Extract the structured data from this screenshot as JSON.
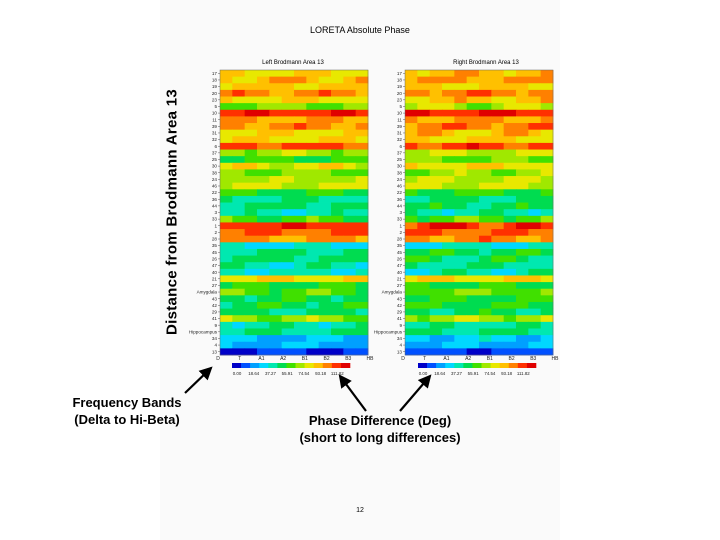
{
  "slide": {
    "title": "LORETA Absolute Phase",
    "page_number": "12"
  },
  "annotations": {
    "frequency": [
      "Frequency Bands",
      "(Delta to Hi-Beta)"
    ],
    "phase": [
      "Phase Difference (Deg)",
      "(short to long differences)"
    ]
  },
  "colors": {
    "scale": [
      "#0000c8",
      "#0050ff",
      "#00a0ff",
      "#00d8ff",
      "#00e8b0",
      "#00dc50",
      "#40e000",
      "#a0e800",
      "#e8e800",
      "#ffc000",
      "#ff8000",
      "#ff3000",
      "#e00000"
    ]
  },
  "chart_data": [
    {
      "type": "heatmap",
      "title": "Left Brodmann Area 13",
      "ylabel": "Distance from Brodmann Area 13",
      "xlabel": "",
      "x_ticks": [
        "D",
        "T",
        "A1",
        "A2",
        "B1",
        "B2",
        "B3",
        "HB"
      ],
      "y_ticks": [
        "17",
        "18",
        "19",
        "20",
        "23",
        "5",
        "10",
        "11",
        "39",
        "31",
        "32",
        "6",
        "37",
        "25",
        "30",
        "38",
        "24",
        "46",
        "22",
        "36",
        "44",
        "3",
        "33",
        "1",
        "2",
        "28",
        "35",
        "45",
        "26",
        "47",
        "40",
        "21",
        "27",
        "Amygdala",
        "43",
        "42",
        "29",
        "41",
        "9",
        "Hippocampus",
        "34",
        "4",
        "13"
      ],
      "colorbar": {
        "ticks": [
          "0.00",
          "18.64",
          "37.27",
          "55.91",
          "74.54",
          "93.18",
          "111.82"
        ],
        "range": [
          0,
          130
        ]
      },
      "row_values": [
        88,
        96,
        93,
        104,
        89,
        72,
        118,
        98,
        104,
        90,
        88,
        112,
        76,
        62,
        85,
        70,
        78,
        80,
        58,
        47,
        52,
        44,
        64,
        117,
        108,
        102,
        38,
        52,
        53,
        46,
        42,
        89,
        57,
        66,
        56,
        56,
        52,
        74,
        46,
        50,
        30,
        28,
        10
      ]
    },
    {
      "type": "heatmap",
      "title": "Right Brodmann Area 13",
      "ylabel": "",
      "xlabel": "",
      "x_ticks": [
        "D",
        "T",
        "A1",
        "A2",
        "B1",
        "B2",
        "B3",
        "HB"
      ],
      "y_ticks": [
        "17",
        "18",
        "19",
        "20",
        "23",
        "5",
        "10",
        "11",
        "39",
        "31",
        "32",
        "6",
        "37",
        "25",
        "30",
        "38",
        "24",
        "46",
        "22",
        "36",
        "44",
        "3",
        "33",
        "1",
        "2",
        "28",
        "35",
        "45",
        "26",
        "47",
        "40",
        "21",
        "27",
        "Amygdala",
        "43",
        "42",
        "29",
        "41",
        "9",
        "Hippocampus",
        "34",
        "4",
        "13"
      ],
      "colorbar": {
        "ticks": [
          "0.00",
          "18.64",
          "37.27",
          "55.91",
          "74.54",
          "93.18",
          "111.82"
        ],
        "range": [
          0,
          130
        ]
      },
      "row_values": [
        95,
        100,
        93,
        106,
        95,
        76,
        120,
        102,
        106,
        94,
        92,
        114,
        78,
        68,
        88,
        75,
        80,
        82,
        60,
        50,
        54,
        46,
        66,
        116,
        108,
        104,
        42,
        55,
        54,
        48,
        45,
        90,
        58,
        68,
        58,
        58,
        54,
        76,
        48,
        52,
        34,
        30,
        12
      ]
    }
  ]
}
